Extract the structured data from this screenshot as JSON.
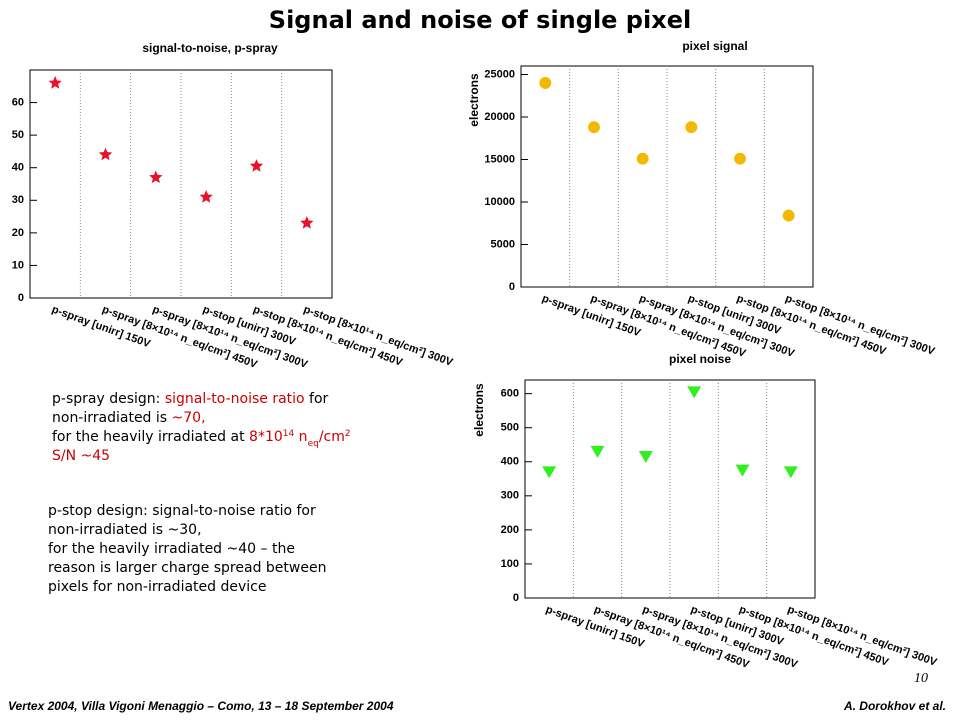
{
  "title": "Signal and noise of single pixel",
  "chart_data": [
    {
      "type": "scatter",
      "marker": "star",
      "title": "signal-to-noise, p-spray",
      "color": "#e8102a",
      "categories": [
        "p-spray [unirr] 150V",
        "p-spray [8×10¹⁴ n_eq/cm²] 450V",
        "p-spray [8×10¹⁴ n_eq/cm²] 300V",
        "p-stop [unirr] 300V",
        "p-stop [8×10¹⁴ n_eq/cm²] 450V",
        "p-stop [8×10¹⁴ n_eq/cm²] 300V"
      ],
      "values": [
        66,
        44,
        37,
        31,
        40.5,
        23
      ],
      "ylim": [
        0,
        70
      ],
      "yticks": [
        0,
        10,
        20,
        30,
        40,
        50,
        60
      ],
      "grid": "category"
    },
    {
      "type": "scatter",
      "marker": "circle",
      "title": "pixel signal",
      "ylabel": "electrons",
      "color": "#f5b800",
      "categories": [
        "p-spray [unirr] 150V",
        "p-spray [8×10¹⁴ n_eq/cm²] 450V",
        "p-spray [8×10¹⁴ n_eq/cm²] 300V",
        "p-stop [unirr] 300V",
        "p-stop [8×10¹⁴ n_eq/cm²] 450V",
        "p-stop [8×10¹⁴ n_eq/cm²] 300V"
      ],
      "values": [
        24000,
        18800,
        15100,
        18800,
        15100,
        8400
      ],
      "ylim": [
        0,
        26000
      ],
      "yticks": [
        0,
        5000,
        10000,
        15000,
        20000,
        25000
      ],
      "grid": "category"
    },
    {
      "type": "scatter",
      "marker": "triangle-down",
      "title": "pixel noise",
      "ylabel": "electrons",
      "color": "#33ee22",
      "categories": [
        "p-spray [unirr] 150V",
        "p-spray [8×10¹⁴ n_eq/cm²] 450V",
        "p-spray [8×10¹⁴ n_eq/cm²] 300V",
        "p-stop [unirr] 300V",
        "p-stop [8×10¹⁴ n_eq/cm²] 450V",
        "p-stop [8×10¹⁴ n_eq/cm²] 300V"
      ],
      "values": [
        370,
        430,
        415,
        605,
        375,
        370
      ],
      "ylim": [
        0,
        640
      ],
      "yticks": [
        0,
        100,
        200,
        300,
        400,
        500,
        600
      ],
      "grid": "category"
    }
  ],
  "paragraphs": [
    [
      [
        {
          "text": "p-spray design: "
        },
        {
          "text": "signal-to-noise ratio",
          "color": "#cc0000"
        },
        {
          "text": " for"
        }
      ],
      [
        {
          "text": "non-irradiated is "
        },
        {
          "text": "~70,",
          "color": "#cc0000"
        }
      ],
      [
        {
          "text": "for the heavily irradiated at "
        },
        {
          "text": "8*10",
          "color": "#cc0000"
        },
        {
          "text": "14",
          "color": "#cc0000",
          "style": "sup"
        },
        {
          "text": " n",
          "color": "#cc0000"
        },
        {
          "text": "eq",
          "color": "#cc0000",
          "style": "sub"
        },
        {
          "text": "/cm",
          "color": "#cc0000"
        },
        {
          "text": "2",
          "color": "#cc0000",
          "style": "sup"
        }
      ],
      [
        {
          "text": "S/N ~45",
          "color": "#cc0000"
        }
      ]
    ],
    [
      [
        {
          "text": "p-stop design: signal-to-noise ratio for"
        }
      ],
      [
        {
          "text": "non-irradiated is ~30,"
        }
      ],
      [
        {
          "text": "for the heavily irradiated ~40 – the"
        }
      ],
      [
        {
          "text": "reason is larger charge spread between"
        }
      ],
      [
        {
          "text": "pixels for non-irradiated device"
        }
      ]
    ]
  ],
  "footer": {
    "left": "Vertex 2004, Villa Vigoni Menaggio – Como, 13 – 18 September 2004",
    "right": "A. Dorokhov et al.",
    "page_number": 10
  }
}
